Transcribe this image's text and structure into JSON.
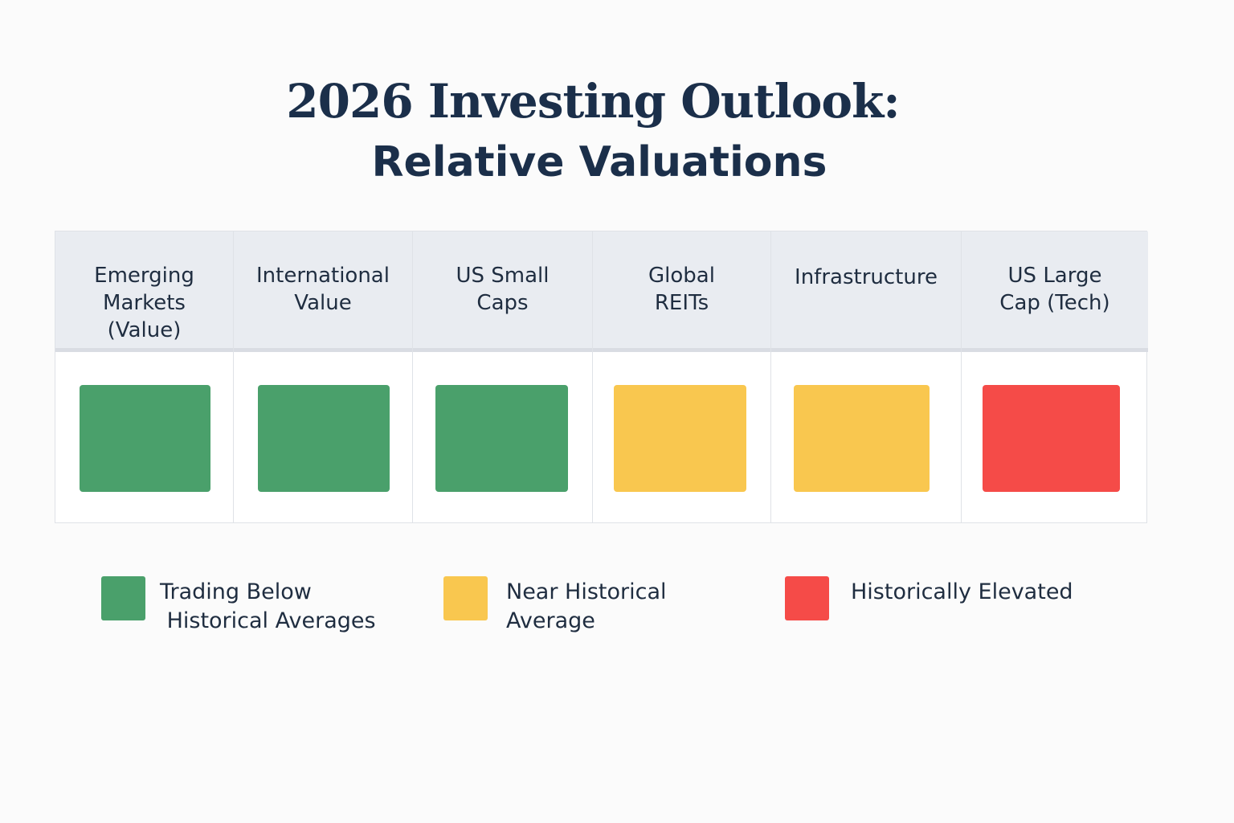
{
  "title": "2026 Investing Outlook:",
  "subtitle": "Relative Valuations",
  "chart_data": {
    "type": "heatmap",
    "title": "2026 Investing Outlook: Relative Valuations",
    "categories": [
      "Emerging Markets (Value)",
      "International Value",
      "US Small Caps",
      "Global REITs",
      "Infrastructure",
      "US Large Cap (Tech)"
    ],
    "header_lines": [
      [
        "Emerging",
        "Markets",
        "(Value)"
      ],
      [
        "International",
        "Value"
      ],
      [
        "US Small",
        "Caps"
      ],
      [
        "Global",
        "REITs"
      ],
      [
        "Infrastructure"
      ],
      [
        "US Large",
        "Cap (Tech)"
      ]
    ],
    "values": [
      "below",
      "below",
      "below",
      "near",
      "near",
      "elevated"
    ],
    "legend": [
      {
        "key": "below",
        "label": "Trading Below\n Historical Averages",
        "color": "#4aa06b"
      },
      {
        "key": "near",
        "label": "Near Historical\nAverage",
        "color": "#f9c74f"
      },
      {
        "key": "elevated",
        "label": "Historically Elevated",
        "color": "#f54b48"
      }
    ],
    "legend_placement": "bottom"
  }
}
